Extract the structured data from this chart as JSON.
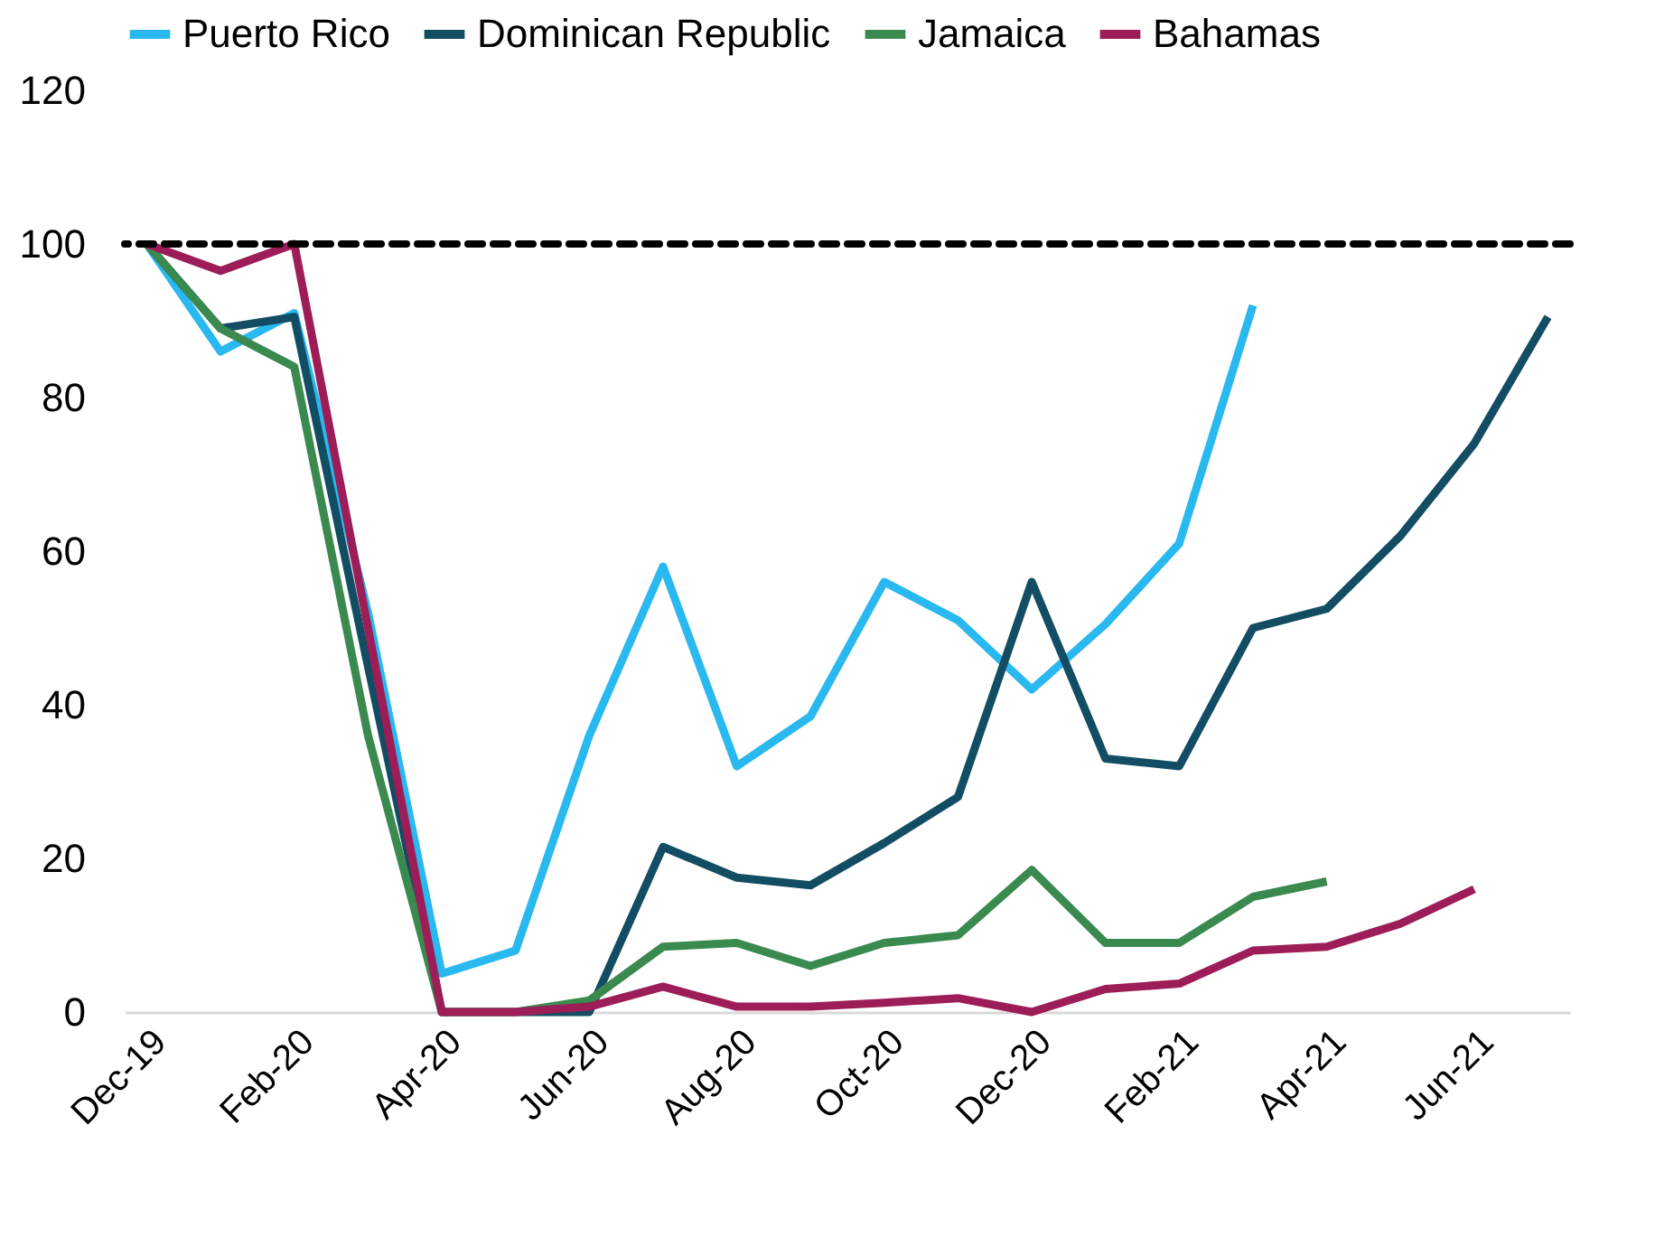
{
  "chart_data": {
    "type": "line",
    "categories": [
      "Dec-19",
      null,
      "Feb-20",
      null,
      "Apr-20",
      null,
      "Jun-20",
      null,
      "Aug-20",
      null,
      "Oct-20",
      null,
      "Dec-20",
      null,
      "Feb-21",
      null,
      "Apr-21",
      null,
      "Jun-21",
      null
    ],
    "series": [
      {
        "name": "Puerto Rico",
        "color": "#29b8ef",
        "values": [
          100,
          86,
          91,
          52,
          5,
          8,
          36,
          58,
          32,
          38.5,
          56,
          51,
          42,
          50.5,
          61,
          92,
          null,
          null,
          null,
          null
        ]
      },
      {
        "name": "Dominican Republic",
        "color": "#124d63",
        "values": [
          100,
          89,
          90.5,
          45,
          0,
          0,
          0,
          21.5,
          17.5,
          16.5,
          22,
          28,
          56,
          33,
          32,
          50,
          52.5,
          62,
          74,
          90.5
        ]
      },
      {
        "name": "Jamaica",
        "color": "#3a8a50",
        "values": [
          100,
          89,
          84,
          36,
          0,
          0,
          1.5,
          8.5,
          9,
          6,
          9,
          10,
          18.5,
          9,
          9,
          15,
          17,
          null,
          null,
          null
        ]
      },
      {
        "name": "Bahamas",
        "color": "#9c1d57",
        "values": [
          100,
          96.5,
          100,
          50,
          0,
          0,
          0.7,
          3.3,
          0.7,
          0.7,
          1.2,
          1.8,
          0,
          3,
          3.7,
          8,
          8.5,
          11.5,
          16,
          null
        ]
      }
    ],
    "ylim": [
      0,
      120
    ],
    "yticks": [
      0,
      20,
      40,
      60,
      80,
      100,
      120
    ],
    "grid": false,
    "legend": "top",
    "marker": "none",
    "line_style": "solid",
    "ref_lines": [
      {
        "axis": "y",
        "value": 100,
        "color": "#000000",
        "line_style": "dashed"
      }
    ]
  }
}
